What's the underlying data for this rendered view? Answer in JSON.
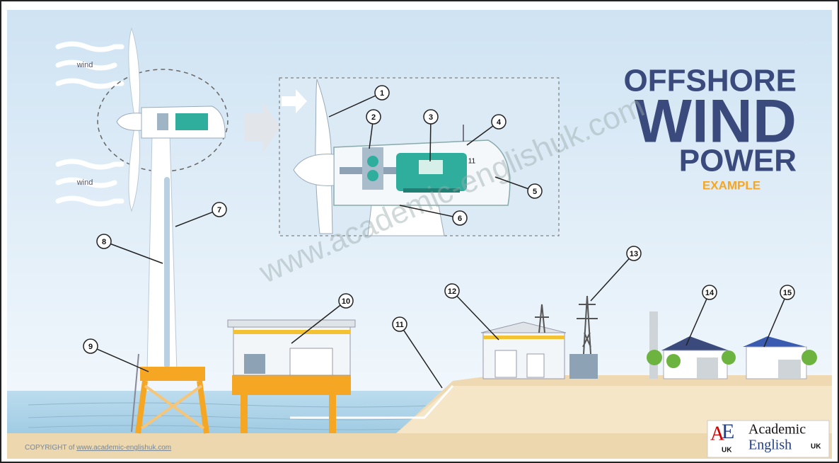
{
  "title": {
    "line1": "OFFSHORE",
    "line2": "WIND",
    "line3": "POWER",
    "subtitle": "EXAMPLE"
  },
  "wind_labels": [
    "wind",
    "wind"
  ],
  "callouts": [
    {
      "label": "1"
    },
    {
      "label": "2"
    },
    {
      "label": "3"
    },
    {
      "label": "4"
    },
    {
      "label": "5"
    },
    {
      "label": "6"
    },
    {
      "label": "7"
    },
    {
      "label": "8"
    },
    {
      "label": "9"
    },
    {
      "label": "10"
    },
    {
      "label": "11"
    },
    {
      "label": "12"
    },
    {
      "label": "13"
    },
    {
      "label": "14"
    },
    {
      "label": "15"
    }
  ],
  "inset_label": "11",
  "watermark": "www.academic-englishuk.com",
  "copyright": {
    "prefix": "COPYRIGHT of",
    "link": "www.academic-englishuk.com"
  },
  "logo": {
    "letter_a": "A",
    "letter_e": "E",
    "letters_sub": "UK",
    "word1": "Academic",
    "word2": "English",
    "word3": "UK"
  }
}
